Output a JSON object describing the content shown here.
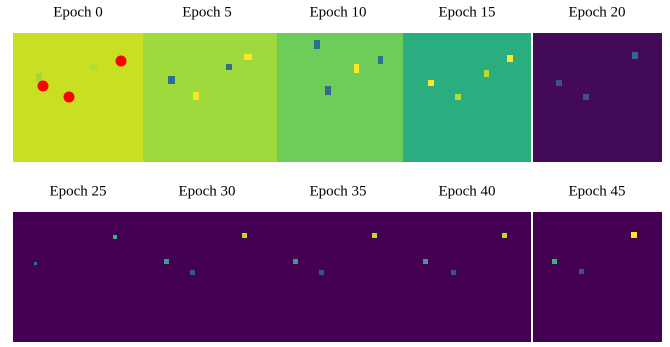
{
  "panels": [
    {
      "title": "Epoch 0"
    },
    {
      "title": "Epoch 5"
    },
    {
      "title": "Epoch 10"
    },
    {
      "title": "Epoch 15"
    },
    {
      "title": "Epoch 20"
    },
    {
      "title": "Epoch 25"
    },
    {
      "title": "Epoch 30"
    },
    {
      "title": "Epoch 35"
    },
    {
      "title": "Epoch 40"
    },
    {
      "title": "Epoch 45"
    }
  ]
}
